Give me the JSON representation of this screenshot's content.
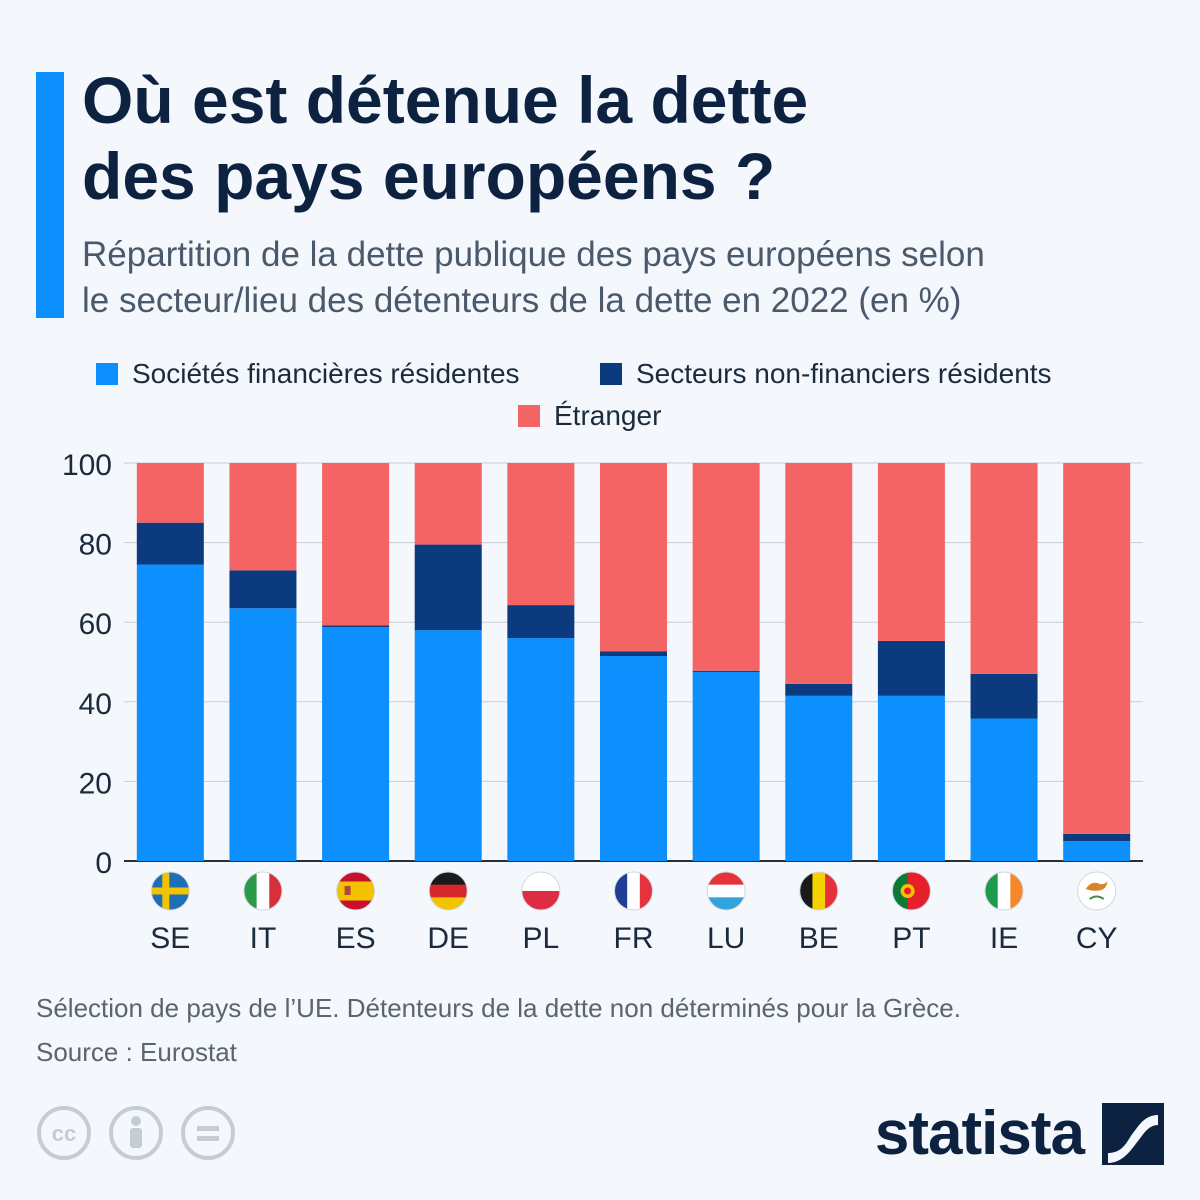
{
  "header": {
    "title_line1": "Où est détenue la dette",
    "title_line2": "des pays européens ?",
    "subtitle_line1": "Répartition de la dette publique des pays européens selon",
    "subtitle_line2": "le secteur/lieu des détenteurs de la dette en 2022 (en %)"
  },
  "legend": {
    "financial": "Sociétés financières résidentes",
    "nonfinancial": "Secteurs non-financiers résidents",
    "foreign": "Étranger"
  },
  "colors": {
    "financial": "#0d8ffe",
    "nonfinancial": "#0b3a7e",
    "foreign": "#f46464",
    "accent": "#0d8ffe",
    "text_dark": "#0d2240"
  },
  "chart_data": {
    "type": "bar",
    "stacked": true,
    "title": "Où est détenue la dette des pays européens ?",
    "categories": [
      "SE",
      "IT",
      "ES",
      "DE",
      "PL",
      "FR",
      "LU",
      "BE",
      "PT",
      "IE",
      "CY"
    ],
    "series": [
      {
        "name": "Sociétés financières résidentes",
        "values": [
          74.5,
          63.5,
          58.8,
          58,
          56,
          51.5,
          47.5,
          41.5,
          41.5,
          35.8,
          5
        ]
      },
      {
        "name": "Secteurs non-financiers résidents",
        "values": [
          10.5,
          9.5,
          0.4,
          21.5,
          8.3,
          1.2,
          0.3,
          3,
          13.8,
          11.2,
          1.8
        ]
      },
      {
        "name": "Étranger",
        "values": [
          15,
          27,
          40.8,
          20.5,
          35.7,
          47.3,
          52.2,
          55.5,
          44.7,
          53,
          93.2
        ]
      }
    ],
    "yticks": [
      0,
      20,
      40,
      60,
      80,
      100
    ],
    "ylim": [
      0,
      100
    ],
    "xlabel": "",
    "ylabel": "",
    "grid": true
  },
  "footer": {
    "note": "Sélection de pays de l’UE. Détenteurs de la dette non déterminés pour la Grèce.",
    "source": "Source : Eurostat",
    "brand": "statista",
    "license_icons": [
      "cc-icon",
      "by-icon",
      "nd-icon"
    ]
  }
}
